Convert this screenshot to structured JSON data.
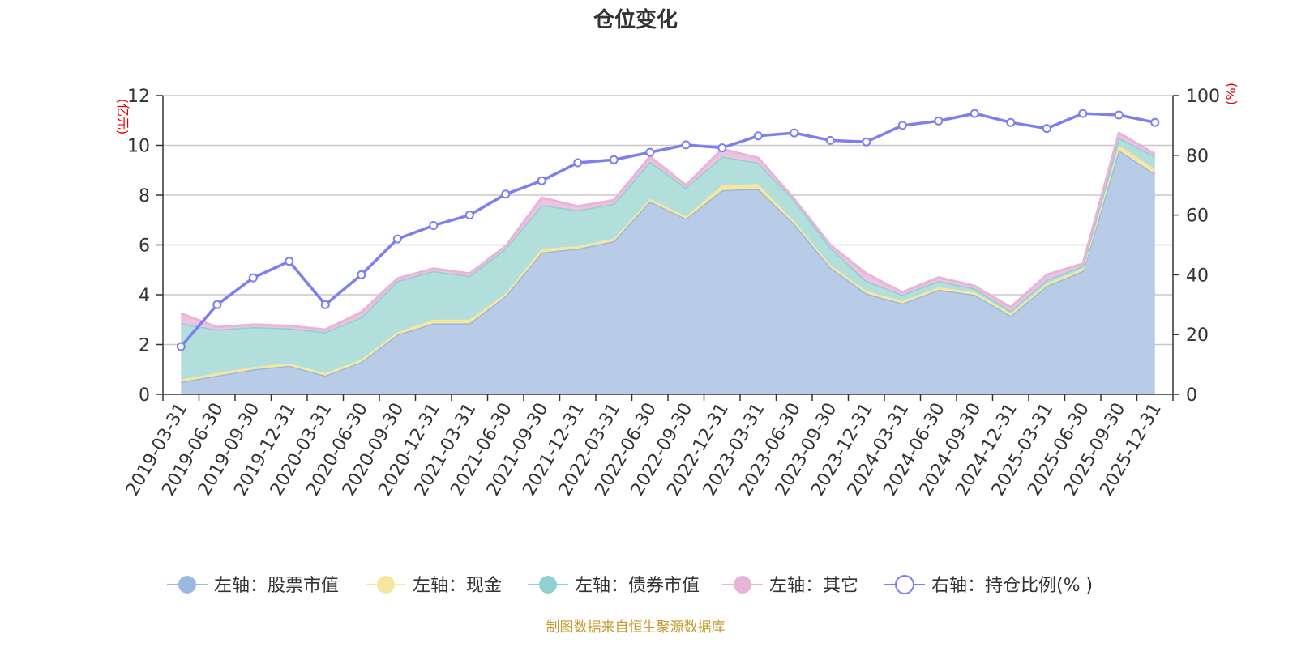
{
  "chart_data": {
    "type": "area",
    "title": "仓位变化",
    "source_note": "制图数据来自恒生聚源数据库",
    "left_axis": {
      "label": "(亿元)",
      "range": [
        0,
        12
      ],
      "ticks": [
        "0",
        "2",
        "4",
        "6",
        "8",
        "10",
        "12"
      ]
    },
    "right_axis": {
      "label": "(%)",
      "range": [
        0,
        100
      ],
      "ticks": [
        "0",
        "20",
        "40",
        "60",
        "80",
        "100"
      ]
    },
    "categories": [
      "2019-03-31",
      "2019-06-30",
      "2019-09-30",
      "2019-12-31",
      "2020-03-31",
      "2020-06-30",
      "2020-09-30",
      "2020-12-31",
      "2021-03-31",
      "2021-06-30",
      "2021-09-30",
      "2021-12-31",
      "2022-03-31",
      "2022-06-30",
      "2022-09-30",
      "2022-12-31",
      "2023-03-31",
      "2023-06-30",
      "2023-09-30",
      "2023-12-31",
      "2024-03-31",
      "2024-06-30",
      "2024-09-30",
      "2024-12-31",
      "2025-03-31",
      "2025-06-30",
      "2025-09-30",
      "2025-12-31"
    ],
    "series": [
      {
        "name": "左轴：股票市值",
        "axis": "left",
        "stack": true,
        "color": "#9bb8e0",
        "fill": "#b8cce8",
        "values": [
          0.5,
          0.75,
          1.0,
          1.15,
          0.75,
          1.3,
          2.4,
          2.85,
          2.85,
          3.95,
          5.7,
          5.85,
          6.15,
          7.75,
          7.05,
          8.2,
          8.25,
          6.85,
          5.1,
          4.05,
          3.65,
          4.2,
          4.0,
          3.15,
          4.35,
          4.95,
          9.8,
          8.85
        ]
      },
      {
        "name": "左轴：现金",
        "axis": "left",
        "stack": true,
        "color": "#f5e6a0",
        "fill": "#f5e6a0",
        "values": [
          0.1,
          0.1,
          0.1,
          0.1,
          0.1,
          0.1,
          0.1,
          0.15,
          0.15,
          0.1,
          0.15,
          0.1,
          0.1,
          0.1,
          0.1,
          0.2,
          0.2,
          0.1,
          0.1,
          0.1,
          0.1,
          0.1,
          0.1,
          0.1,
          0.1,
          0.1,
          0.2,
          0.2
        ]
      },
      {
        "name": "左轴：债券市值",
        "axis": "left",
        "stack": true,
        "color": "#8fd0d0",
        "fill": "#b2dfdc",
        "values": [
          2.25,
          1.75,
          1.6,
          1.4,
          1.65,
          1.7,
          2.05,
          1.95,
          1.75,
          1.8,
          1.75,
          1.45,
          1.4,
          1.5,
          1.15,
          1.15,
          0.85,
          0.85,
          0.7,
          0.4,
          0.25,
          0.25,
          0.15,
          0.1,
          0.15,
          0.1,
          0.3,
          0.5
        ]
      },
      {
        "name": "左轴：其它",
        "axis": "left",
        "stack": true,
        "color": "#e8b4d8",
        "fill": "#ecc3e0",
        "values": [
          0.4,
          0.1,
          0.1,
          0.1,
          0.1,
          0.2,
          0.1,
          0.1,
          0.1,
          0.1,
          0.3,
          0.15,
          0.15,
          0.2,
          0.1,
          0.3,
          0.2,
          0.05,
          0.1,
          0.3,
          0.1,
          0.15,
          0.1,
          0.15,
          0.2,
          0.1,
          0.2,
          0.1
        ]
      },
      {
        "name": "右轴：持仓比例(% )",
        "axis": "right",
        "stack": false,
        "color": "#7b7ff0",
        "values": [
          16,
          30,
          39,
          44.5,
          30,
          40,
          52,
          56.5,
          60,
          67,
          71.5,
          77.5,
          78.5,
          81,
          83.5,
          82.5,
          86.5,
          87.5,
          85,
          84.5,
          90,
          91.5,
          94,
          91,
          89,
          94,
          93.5,
          91
        ]
      }
    ],
    "legend_position": "bottom-center"
  }
}
